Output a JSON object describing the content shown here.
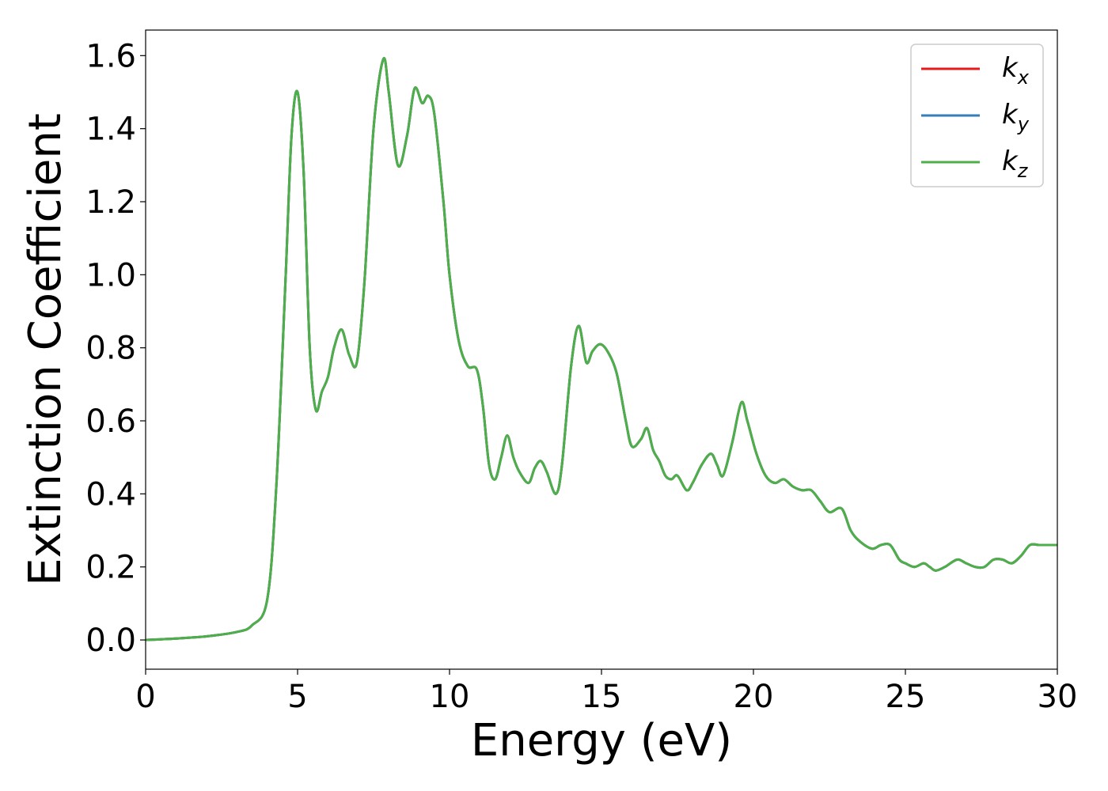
{
  "chart_data": {
    "type": "line",
    "title": "",
    "xlabel": "Energy (eV)",
    "ylabel": "Extinction Coefficient",
    "xlim": [
      0,
      30
    ],
    "ylim": [
      -0.08,
      1.67
    ],
    "xticks": [
      0,
      5,
      10,
      15,
      20,
      25,
      30
    ],
    "xtick_labels": [
      "0",
      "5",
      "10",
      "15",
      "20",
      "25",
      "30"
    ],
    "yticks": [
      0.0,
      0.2,
      0.4,
      0.6,
      0.8,
      1.0,
      1.2,
      1.4,
      1.6
    ],
    "ytick_labels": [
      "0.0",
      "0.2",
      "0.4",
      "0.6",
      "0.8",
      "1.0",
      "1.2",
      "1.4",
      "1.6"
    ],
    "grid": false,
    "legend_position": "top-right",
    "x": [
      0,
      1,
      2,
      3,
      3.5,
      4.0,
      4.3,
      4.6,
      4.8,
      5.0,
      5.2,
      5.4,
      5.6,
      5.8,
      6.0,
      6.2,
      6.45,
      6.7,
      6.95,
      7.2,
      7.5,
      7.82,
      8.0,
      8.3,
      8.6,
      8.85,
      9.1,
      9.3,
      9.5,
      9.8,
      10.0,
      10.3,
      10.6,
      10.9,
      11.1,
      11.3,
      11.5,
      11.7,
      11.9,
      12.1,
      12.3,
      12.6,
      12.8,
      13.0,
      13.2,
      13.5,
      13.7,
      14.0,
      14.25,
      14.5,
      14.7,
      14.95,
      15.2,
      15.5,
      15.8,
      16.0,
      16.3,
      16.5,
      16.7,
      16.9,
      17.1,
      17.3,
      17.5,
      17.8,
      18.0,
      18.3,
      18.6,
      18.8,
      19.0,
      19.3,
      19.6,
      19.8,
      20.1,
      20.4,
      20.7,
      21.0,
      21.3,
      21.6,
      21.9,
      22.2,
      22.5,
      22.9,
      23.2,
      23.5,
      23.9,
      24.2,
      24.5,
      24.8,
      25.0,
      25.3,
      25.6,
      25.8,
      26.0,
      26.3,
      26.7,
      27.0,
      27.3,
      27.6,
      27.9,
      28.2,
      28.5,
      28.8,
      29.1,
      29.4,
      29.7,
      30.0
    ],
    "series": [
      {
        "name": "k_x",
        "color": "#e41a1c",
        "values": [
          0.0,
          0.004,
          0.01,
          0.022,
          0.04,
          0.11,
          0.42,
          0.98,
          1.38,
          1.5,
          1.28,
          0.8,
          0.63,
          0.68,
          0.72,
          0.8,
          0.85,
          0.78,
          0.76,
          0.98,
          1.4,
          1.59,
          1.5,
          1.3,
          1.38,
          1.51,
          1.47,
          1.49,
          1.44,
          1.2,
          1.0,
          0.82,
          0.75,
          0.74,
          0.64,
          0.48,
          0.44,
          0.5,
          0.56,
          0.5,
          0.46,
          0.43,
          0.47,
          0.49,
          0.46,
          0.4,
          0.48,
          0.75,
          0.86,
          0.76,
          0.79,
          0.81,
          0.79,
          0.73,
          0.6,
          0.53,
          0.55,
          0.58,
          0.52,
          0.49,
          0.45,
          0.44,
          0.45,
          0.41,
          0.43,
          0.48,
          0.51,
          0.48,
          0.45,
          0.54,
          0.65,
          0.6,
          0.51,
          0.45,
          0.43,
          0.44,
          0.42,
          0.41,
          0.41,
          0.38,
          0.35,
          0.36,
          0.3,
          0.27,
          0.25,
          0.26,
          0.26,
          0.22,
          0.21,
          0.2,
          0.21,
          0.2,
          0.19,
          0.2,
          0.22,
          0.21,
          0.2,
          0.2,
          0.22,
          0.22,
          0.21,
          0.23,
          0.26,
          0.26,
          0.26,
          0.26
        ]
      },
      {
        "name": "k_y",
        "color": "#377eb8",
        "values": [
          0.0,
          0.004,
          0.01,
          0.022,
          0.04,
          0.11,
          0.42,
          0.98,
          1.38,
          1.5,
          1.28,
          0.8,
          0.63,
          0.68,
          0.72,
          0.8,
          0.85,
          0.78,
          0.76,
          0.98,
          1.4,
          1.59,
          1.5,
          1.3,
          1.38,
          1.51,
          1.47,
          1.49,
          1.44,
          1.2,
          1.0,
          0.82,
          0.75,
          0.74,
          0.64,
          0.48,
          0.44,
          0.5,
          0.56,
          0.5,
          0.46,
          0.43,
          0.47,
          0.49,
          0.46,
          0.4,
          0.48,
          0.75,
          0.86,
          0.76,
          0.79,
          0.81,
          0.79,
          0.73,
          0.6,
          0.53,
          0.55,
          0.58,
          0.52,
          0.49,
          0.45,
          0.44,
          0.45,
          0.41,
          0.43,
          0.48,
          0.51,
          0.48,
          0.45,
          0.54,
          0.65,
          0.6,
          0.51,
          0.45,
          0.43,
          0.44,
          0.42,
          0.41,
          0.41,
          0.38,
          0.35,
          0.36,
          0.3,
          0.27,
          0.25,
          0.26,
          0.26,
          0.22,
          0.21,
          0.2,
          0.21,
          0.2,
          0.19,
          0.2,
          0.22,
          0.21,
          0.2,
          0.2,
          0.22,
          0.22,
          0.21,
          0.23,
          0.26,
          0.26,
          0.26,
          0.26
        ]
      },
      {
        "name": "k_z",
        "color": "#4daf4a",
        "values": [
          0.0,
          0.004,
          0.01,
          0.022,
          0.04,
          0.11,
          0.42,
          0.98,
          1.38,
          1.5,
          1.28,
          0.8,
          0.63,
          0.68,
          0.72,
          0.8,
          0.85,
          0.78,
          0.76,
          0.98,
          1.4,
          1.59,
          1.5,
          1.3,
          1.38,
          1.51,
          1.47,
          1.49,
          1.44,
          1.2,
          1.0,
          0.82,
          0.75,
          0.74,
          0.64,
          0.48,
          0.44,
          0.5,
          0.56,
          0.5,
          0.46,
          0.43,
          0.47,
          0.49,
          0.46,
          0.4,
          0.48,
          0.75,
          0.86,
          0.76,
          0.79,
          0.81,
          0.79,
          0.73,
          0.6,
          0.53,
          0.55,
          0.58,
          0.52,
          0.49,
          0.45,
          0.44,
          0.45,
          0.41,
          0.43,
          0.48,
          0.51,
          0.48,
          0.45,
          0.54,
          0.65,
          0.6,
          0.51,
          0.45,
          0.43,
          0.44,
          0.42,
          0.41,
          0.41,
          0.38,
          0.35,
          0.36,
          0.3,
          0.27,
          0.25,
          0.26,
          0.26,
          0.22,
          0.21,
          0.2,
          0.21,
          0.2,
          0.19,
          0.2,
          0.22,
          0.21,
          0.2,
          0.2,
          0.22,
          0.22,
          0.21,
          0.23,
          0.26,
          0.26,
          0.26,
          0.26
        ]
      }
    ],
    "legend": [
      {
        "base": "k",
        "sub": "x",
        "color": "#e41a1c"
      },
      {
        "base": "k",
        "sub": "y",
        "color": "#377eb8"
      },
      {
        "base": "k",
        "sub": "z",
        "color": "#4daf4a"
      }
    ]
  }
}
